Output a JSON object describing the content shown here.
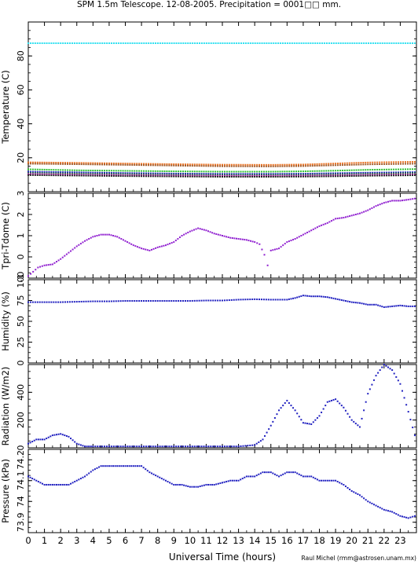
{
  "title": "SPM 1.5m Telescope. 12-08-2005. Precipitation = 0001□□ mm.",
  "xlabel": "Universal Time (hours)",
  "credit": "Raul Michel (rmm@astrosen.unam.mx)",
  "colors": {
    "cyan": "#30e0f0",
    "orange": "#e87020",
    "brown": "#a05a2a",
    "green": "#30c030",
    "blue": "#2020c0",
    "darkgreen": "#207030",
    "magenta": "#c020c0",
    "black": "#202020",
    "purple": "#9020d0"
  },
  "chart_data": [
    {
      "type": "scatter",
      "ylabel": "Temperature (C)",
      "xlim": [
        0,
        24
      ],
      "ylim": [
        0,
        100
      ],
      "xticks": [
        0,
        1,
        2,
        3,
        4,
        5,
        6,
        7,
        8,
        9,
        10,
        11,
        12,
        13,
        14,
        15,
        16,
        17,
        18,
        19,
        20,
        21,
        22,
        23
      ],
      "yticks": [
        20,
        40,
        60,
        80
      ],
      "series": [
        {
          "color": "cyan",
          "x": [
            0,
            23.9
          ],
          "y": [
            87.5,
            87.5
          ]
        },
        {
          "color": "orange",
          "x": [
            0,
            3,
            6,
            9,
            12,
            15,
            17,
            19,
            21,
            23.9
          ],
          "y": [
            17.3,
            17,
            16.6,
            16.2,
            15.9,
            15.8,
            16,
            16.6,
            17.2,
            17.6
          ]
        },
        {
          "color": "brown",
          "x": [
            0,
            3,
            6,
            9,
            12,
            15,
            17,
            19,
            21,
            23.9
          ],
          "y": [
            16.5,
            16.2,
            15.8,
            15.4,
            15,
            14.9,
            15.1,
            15.6,
            16.1,
            16.5
          ]
        },
        {
          "color": "green",
          "x": [
            0,
            3,
            6,
            9,
            12,
            15,
            17,
            19,
            21,
            23.9
          ],
          "y": [
            13.2,
            12.6,
            12.3,
            12,
            11.8,
            11.8,
            12,
            12.4,
            12.9,
            13.3
          ]
        },
        {
          "color": "blue",
          "x": [
            0,
            3,
            6,
            9,
            12,
            15,
            17,
            19,
            21,
            23.9
          ],
          "y": [
            11.8,
            11.4,
            11,
            10.7,
            10.5,
            10.5,
            10.6,
            10.9,
            11.2,
            11.5
          ]
        },
        {
          "color": "darkgreen",
          "x": [
            0,
            3,
            6,
            9,
            12,
            15,
            17,
            19,
            21,
            23.9
          ],
          "y": [
            11,
            10.6,
            10.3,
            10,
            9.8,
            9.8,
            9.9,
            10.2,
            10.5,
            10.9
          ]
        },
        {
          "color": "magenta",
          "x": [
            0,
            3,
            6,
            9,
            12,
            15,
            17,
            19,
            21,
            23.9
          ],
          "y": [
            10.4,
            10,
            9.7,
            9.5,
            9.3,
            9.3,
            9.4,
            9.6,
            9.9,
            10.2
          ]
        },
        {
          "color": "black",
          "x": [
            0,
            3,
            6,
            9,
            12,
            15,
            17,
            19,
            21,
            23.9
          ],
          "y": [
            9.8,
            9.5,
            9.2,
            9,
            8.8,
            8.8,
            8.9,
            9.1,
            9.4,
            9.7
          ]
        }
      ]
    },
    {
      "type": "scatter",
      "ylabel": "Tpri-Tdome (C)",
      "xlim": [
        0,
        24
      ],
      "ylim": [
        -1,
        3
      ],
      "yticks": [
        -1,
        0,
        1,
        2,
        3
      ],
      "series": [
        {
          "color": "purple",
          "x": [
            0,
            0.3,
            0.6,
            1,
            1.5,
            2,
            2.5,
            3,
            3.5,
            4,
            4.5,
            5,
            5.5,
            6,
            6.5,
            7,
            7.5,
            8,
            8.5,
            9,
            9.5,
            10,
            10.5,
            11,
            11.5,
            12,
            12.5,
            13,
            13.5,
            14,
            14.3,
            14.6,
            14.8,
            15,
            15.5,
            16,
            16.5,
            17,
            17.5,
            18,
            18.5,
            19,
            19.5,
            20,
            20.5,
            21,
            21.5,
            22,
            22.5,
            23,
            23.5,
            23.9
          ],
          "y": [
            -0.9,
            -0.7,
            -0.5,
            -0.4,
            -0.35,
            -0.1,
            0.2,
            0.5,
            0.75,
            0.95,
            1.05,
            1.05,
            0.95,
            0.75,
            0.55,
            0.4,
            0.3,
            0.45,
            0.55,
            0.7,
            1,
            1.2,
            1.35,
            1.25,
            1.1,
            1,
            0.9,
            0.85,
            0.8,
            0.7,
            0.6,
            0.1,
            -0.4,
            0.3,
            0.4,
            0.7,
            0.85,
            1.05,
            1.25,
            1.45,
            1.6,
            1.8,
            1.85,
            1.95,
            2.05,
            2.2,
            2.4,
            2.55,
            2.65,
            2.65,
            2.7,
            2.75
          ]
        }
      ]
    },
    {
      "type": "scatter",
      "ylabel": "Humidity (%)",
      "xlim": [
        0,
        24
      ],
      "ylim": [
        0,
        100
      ],
      "yticks": [
        0,
        25,
        50,
        75,
        100
      ],
      "series": [
        {
          "color": "blue",
          "x": [
            0,
            1,
            2,
            3,
            4,
            5,
            6,
            7,
            8,
            9,
            10,
            11,
            12,
            13,
            14,
            15,
            16,
            16.5,
            17,
            17.5,
            18,
            18.5,
            19,
            19.5,
            20,
            20.5,
            21,
            21.5,
            22,
            22.5,
            23,
            23.5,
            23.9
          ],
          "y": [
            73,
            73,
            73,
            73.5,
            74,
            74,
            74.5,
            74.5,
            74.5,
            74.5,
            74.5,
            75,
            75,
            76,
            76.5,
            76,
            76,
            78,
            81,
            80,
            80,
            79,
            77,
            75,
            73,
            72,
            70,
            70,
            67,
            68,
            69,
            68,
            68
          ]
        }
      ]
    },
    {
      "type": "scatter",
      "ylabel": "Radiation (W/m2)",
      "xlim": [
        0,
        24
      ],
      "ylim": [
        0,
        600
      ],
      "yticks": [
        0,
        200,
        400
      ],
      "series": [
        {
          "color": "blue",
          "x": [
            0,
            0.5,
            1,
            1.5,
            2,
            2.5,
            3,
            3.5,
            4,
            5,
            6,
            7,
            8,
            9,
            10,
            11,
            12,
            13,
            14,
            14.5,
            15,
            15.5,
            16,
            16.5,
            17,
            17.5,
            18,
            18.5,
            19,
            19.5,
            20,
            20.5,
            21,
            21.5,
            22,
            22.5,
            23,
            23.5,
            23.9
          ],
          "y": [
            30,
            60,
            60,
            90,
            100,
            80,
            30,
            10,
            10,
            10,
            10,
            10,
            10,
            10,
            10,
            10,
            10,
            10,
            20,
            60,
            160,
            270,
            340,
            270,
            180,
            170,
            230,
            330,
            350,
            290,
            200,
            150,
            390,
            520,
            600,
            560,
            460,
            260,
            90
          ]
        }
      ]
    },
    {
      "type": "scatter",
      "ylabel": "Pressure (kPa)",
      "xlim": [
        0,
        24
      ],
      "ylim": [
        73.85,
        74.25
      ],
      "yticks": [
        73.9,
        74,
        74.1,
        74.2
      ],
      "ytick_labels": [
        "73.9",
        "74",
        "74.1",
        "74.2"
      ],
      "series": [
        {
          "color": "blue",
          "x": [
            0,
            0.5,
            1,
            1.5,
            2,
            2.5,
            3,
            3.5,
            4,
            4.5,
            5,
            5.5,
            6,
            6.5,
            7,
            7.5,
            8,
            8.5,
            9,
            9.5,
            10,
            10.5,
            11,
            11.5,
            12,
            12.5,
            13,
            13.5,
            14,
            14.5,
            15,
            15.5,
            16,
            16.5,
            17,
            17.5,
            18,
            18.5,
            19,
            19.5,
            20,
            20.5,
            21,
            21.5,
            22,
            22.5,
            23,
            23.5,
            23.9
          ],
          "y": [
            74.12,
            74.1,
            74.08,
            74.08,
            74.08,
            74.08,
            74.1,
            74.12,
            74.15,
            74.17,
            74.17,
            74.17,
            74.17,
            74.17,
            74.17,
            74.14,
            74.12,
            74.1,
            74.08,
            74.08,
            74.07,
            74.07,
            74.08,
            74.08,
            74.09,
            74.1,
            74.1,
            74.12,
            74.12,
            74.14,
            74.14,
            74.12,
            74.14,
            74.14,
            74.12,
            74.12,
            74.1,
            74.1,
            74.1,
            74.08,
            74.05,
            74.03,
            74,
            73.98,
            73.96,
            73.95,
            73.93,
            73.92,
            73.93
          ]
        }
      ]
    }
  ]
}
